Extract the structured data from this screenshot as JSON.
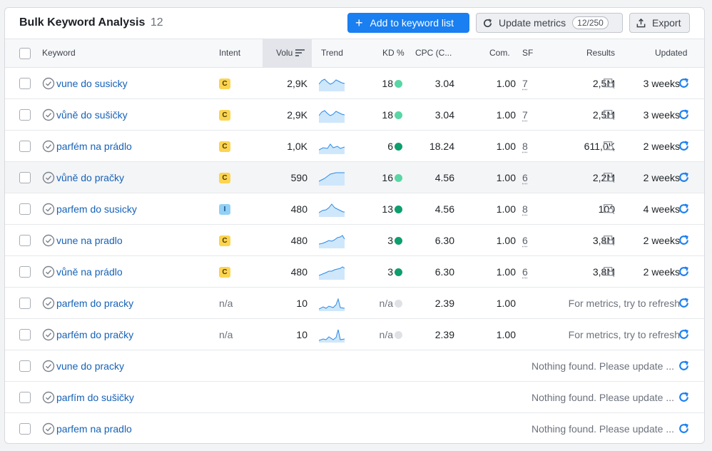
{
  "header": {
    "title": "Bulk Keyword Analysis",
    "count": "12",
    "add_button": "Add to keyword list",
    "update_button": "Update metrics",
    "update_quota": "12/250",
    "export_button": "Export"
  },
  "columns": {
    "keyword": "Keyword",
    "intent": "Intent",
    "volume": "Volu",
    "trend": "Trend",
    "kd": "KD %",
    "cpc": "CPC (C...",
    "com": "Com.",
    "sf": "SF",
    "results": "Results",
    "updated": "Updated"
  },
  "colors": {
    "accent": "#1a7ff0",
    "link": "#1662b8",
    "kd_easy": "#59d6a4",
    "kd_very_easy": "#0f9e6e",
    "kd_na": "#dfe1e6",
    "intent_commercial": "#fcd450",
    "intent_informational": "#93d0f5"
  },
  "rows": [
    {
      "keyword": "vune do susicky",
      "intent": "C",
      "volume": "2,9K",
      "trend": "a",
      "kd": "18",
      "kd_color": "#59d6a4",
      "cpc": "3.04",
      "com": "1.00",
      "sf": "7",
      "results": "2,5M",
      "updated": "3 weeks"
    },
    {
      "keyword": "vůně do sušičky",
      "intent": "C",
      "volume": "2,9K",
      "trend": "a",
      "kd": "18",
      "kd_color": "#59d6a4",
      "cpc": "3.04",
      "com": "1.00",
      "sf": "7",
      "results": "2,5M",
      "updated": "3 weeks"
    },
    {
      "keyword": "parfém na prádlo",
      "intent": "C",
      "volume": "1,0K",
      "trend": "b",
      "kd": "6",
      "kd_color": "#0f9e6e",
      "cpc": "18.24",
      "com": "1.00",
      "sf": "8",
      "results": "611,0K",
      "updated": "2 weeks"
    },
    {
      "keyword": "vůně do pračky",
      "intent": "C",
      "volume": "590",
      "trend": "c",
      "kd": "16",
      "kd_color": "#59d6a4",
      "cpc": "4.56",
      "com": "1.00",
      "sf": "6",
      "results": "2,2M",
      "updated": "2 weeks"
    },
    {
      "keyword": "parfem do susicky",
      "intent": "I",
      "volume": "480",
      "trend": "d",
      "kd": "13",
      "kd_color": "#0f9e6e",
      "cpc": "4.56",
      "com": "1.00",
      "sf": "8",
      "results": "100",
      "updated": "4 weeks"
    },
    {
      "keyword": "vune na pradlo",
      "intent": "C",
      "volume": "480",
      "trend": "e",
      "kd": "3",
      "kd_color": "#0f9e6e",
      "cpc": "6.30",
      "com": "1.00",
      "sf": "6",
      "results": "3,8M",
      "updated": "2 weeks"
    },
    {
      "keyword": "vůně na prádlo",
      "intent": "C",
      "volume": "480",
      "trend": "f",
      "kd": "3",
      "kd_color": "#0f9e6e",
      "cpc": "6.30",
      "com": "1.00",
      "sf": "6",
      "results": "3,8M",
      "updated": "2 weeks"
    },
    {
      "keyword": "parfem do pracky",
      "intent_na": "n/a",
      "volume": "10",
      "trend": "g",
      "kd_na": "n/a",
      "kd_color": "#dfe1e6",
      "cpc": "2.39",
      "com": "1.00",
      "message": "For metrics, try to refresh"
    },
    {
      "keyword": "parfém do pračky",
      "intent_na": "n/a",
      "volume": "10",
      "trend": "h",
      "kd_na": "n/a",
      "kd_color": "#dfe1e6",
      "cpc": "2.39",
      "com": "1.00",
      "message": "For metrics, try to refresh"
    },
    {
      "keyword": "vune do pracky",
      "nothing": "Nothing found. Please update ..."
    },
    {
      "keyword": "parfím do sušičky",
      "nothing": "Nothing found. Please update ..."
    },
    {
      "keyword": "parfem na pradlo",
      "nothing": "Nothing found. Please update ..."
    }
  ]
}
